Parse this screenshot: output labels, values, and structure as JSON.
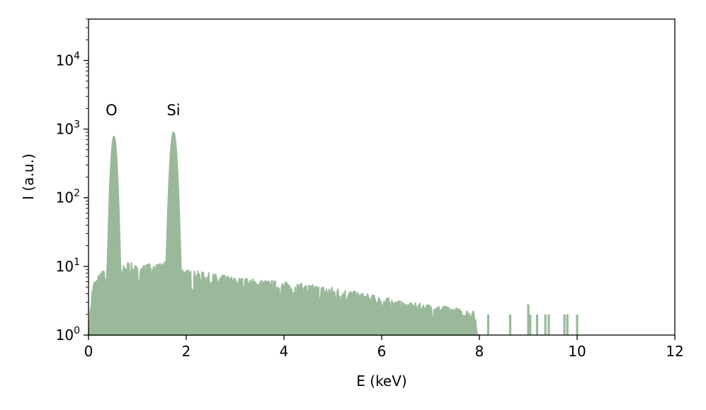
{
  "chart_data": {
    "type": "area",
    "xlabel": "E (keV)",
    "ylabel": "I (a.u.)",
    "xlim": [
      0,
      12
    ],
    "ylim": [
      1,
      40000
    ],
    "yscale": "log",
    "grid": false,
    "color": "#9ab99a",
    "x_ticks": [
      0,
      2,
      4,
      6,
      8,
      10,
      12
    ],
    "x_tick_labels": [
      "0",
      "2",
      "4",
      "6",
      "8",
      "10",
      "12"
    ],
    "y_ticks": [
      1,
      10,
      100,
      1000,
      10000
    ],
    "y_tick_labels": [
      {
        "base": "10",
        "exp": "0"
      },
      {
        "base": "10",
        "exp": "1"
      },
      {
        "base": "10",
        "exp": "2"
      },
      {
        "base": "10",
        "exp": "3"
      },
      {
        "base": "10",
        "exp": "4"
      }
    ],
    "annotations": [
      {
        "text": "O",
        "x": 0.47,
        "y": 1600
      },
      {
        "text": "Si",
        "x": 1.74,
        "y": 1600
      }
    ],
    "series": [
      {
        "peaks": [
          {
            "center": 0.52,
            "height": 780,
            "width": 0.045
          },
          {
            "center": 1.74,
            "height": 900,
            "width": 0.05
          }
        ],
        "envelope": [
          [
            0.0,
            1.0
          ],
          [
            0.05,
            3.0
          ],
          [
            0.1,
            6.0
          ],
          [
            0.3,
            9.0
          ],
          [
            0.6,
            8.0
          ],
          [
            0.8,
            12.0
          ],
          [
            1.0,
            10.0
          ],
          [
            1.2,
            11.0
          ],
          [
            1.5,
            11.0
          ],
          [
            1.65,
            14.0
          ],
          [
            2.0,
            9.0
          ],
          [
            3.0,
            7.0
          ],
          [
            4.0,
            6.0
          ],
          [
            5.0,
            5.0
          ],
          [
            5.7,
            4.0
          ],
          [
            6.5,
            3.0
          ],
          [
            7.0,
            2.8
          ],
          [
            7.5,
            2.5
          ],
          [
            7.9,
            2.2
          ],
          [
            8.0,
            0
          ]
        ],
        "spikes": [
          {
            "x": 8.18,
            "y": 2.0
          },
          {
            "x": 8.63,
            "y": 2.0
          },
          {
            "x": 9.0,
            "y": 2.8
          },
          {
            "x": 9.04,
            "y": 2.0
          },
          {
            "x": 9.18,
            "y": 2.0
          },
          {
            "x": 9.35,
            "y": 2.0
          },
          {
            "x": 9.42,
            "y": 2.0
          },
          {
            "x": 9.74,
            "y": 2.0
          },
          {
            "x": 9.8,
            "y": 2.0
          },
          {
            "x": 10.0,
            "y": 2.0
          }
        ]
      }
    ]
  }
}
